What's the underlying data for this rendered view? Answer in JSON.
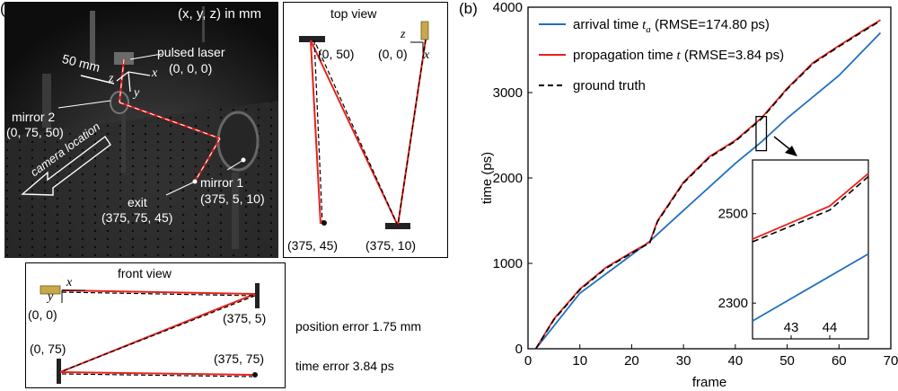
{
  "panel_a": {
    "label": "(a)",
    "photo": {
      "coord_title": "(x, y, z) in mm",
      "scale_label": "50 mm",
      "axis_labels": {
        "x": "x",
        "y": "y",
        "z": "z"
      },
      "pulsed_laser": "pulsed laser",
      "pulsed_laser_coords": "(0, 0, 0)",
      "mirror2": "mirror 2",
      "mirror2_coords": "(0, 75, 50)",
      "mirror1": "mirror 1",
      "mirror1_coords": "(375, 5, 10)",
      "exit": "exit",
      "exit_coords": "(375, 75, 45)",
      "camera_location": "camera location"
    },
    "top_view": {
      "title": "top view",
      "pt_a": "(0, 50)",
      "pt_b": "(0, 0)",
      "pt_c": "(375, 45)",
      "pt_d": "(375, 10)",
      "axis_z": "z",
      "axis_x": "x"
    },
    "front_view": {
      "title": "front view",
      "axis_x": "x",
      "axis_y": "y",
      "pt_a": "(0, 0)",
      "pt_b": "(375, 5)",
      "pt_c": "(0, 75)",
      "pt_d": "(375, 75)"
    },
    "errors": {
      "position": "position error 1.75 mm",
      "time": "time error 3.84 ps"
    },
    "colors": {
      "red_path": "#e8211b",
      "black_path": "#000000",
      "laser": "#c8a84a"
    }
  },
  "chart_data": {
    "label": "(b)",
    "type": "line",
    "xlabel": "frame",
    "ylabel": "time (ps)",
    "xlim": [
      0,
      70
    ],
    "ylim": [
      0,
      4000
    ],
    "xticks": [
      0,
      10,
      20,
      30,
      40,
      50,
      60,
      70
    ],
    "yticks": [
      0,
      1000,
      2000,
      3000,
      4000
    ],
    "grid": false,
    "legend_position": "top-left",
    "series": [
      {
        "name": "arrival time",
        "name_var": "t",
        "name_sub": "a",
        "name_rmse": "(RMSE=174.80 ps)",
        "color": "#1f6fbf",
        "style": "solid",
        "x": [
          1.5,
          10,
          20,
          23.5,
          30,
          40,
          45,
          50,
          60,
          68
        ],
        "y": [
          0,
          650,
          1100,
          1260,
          1620,
          2170,
          2420,
          2700,
          3200,
          3700
        ]
      },
      {
        "name": "propagation time",
        "name_var": "t",
        "name_rmse": "(RMSE=3.84 ps)",
        "color": "#e8211b",
        "style": "solid",
        "x": [
          1.5,
          5,
          10,
          15,
          20,
          23.5,
          25,
          30,
          35,
          40,
          45,
          50,
          55,
          60,
          65,
          68
        ],
        "y": [
          0,
          350,
          700,
          950,
          1130,
          1250,
          1500,
          1950,
          2250,
          2440,
          2700,
          3050,
          3350,
          3550,
          3740,
          3850
        ]
      },
      {
        "name": "ground truth",
        "color": "#000000",
        "style": "dashed",
        "x": [
          1.5,
          5,
          10,
          15,
          20,
          23.5,
          25,
          30,
          35,
          40,
          45,
          50,
          55,
          60,
          65,
          68
        ],
        "y": [
          0,
          340,
          690,
          940,
          1120,
          1240,
          1490,
          1940,
          2240,
          2430,
          2690,
          3040,
          3340,
          3540,
          3730,
          3840
        ]
      }
    ],
    "zoom_box": {
      "xlim": [
        44,
        46
      ],
      "ylim": [
        2320,
        2720
      ]
    },
    "inset": {
      "xlim": [
        42,
        45
      ],
      "ylim": [
        2220,
        2620
      ],
      "xticks": [
        43,
        44
      ],
      "yticks": [
        2300,
        2500
      ],
      "series": [
        {
          "color": "#1f6fbf",
          "style": "solid",
          "x": [
            42,
            45
          ],
          "y": [
            2260,
            2410
          ]
        },
        {
          "color": "#e8211b",
          "style": "solid",
          "x": [
            42,
            44,
            45
          ],
          "y": [
            2443,
            2517,
            2590
          ]
        },
        {
          "color": "#000000",
          "style": "dashed",
          "x": [
            42,
            44,
            45
          ],
          "y": [
            2437,
            2508,
            2583
          ]
        }
      ]
    }
  }
}
